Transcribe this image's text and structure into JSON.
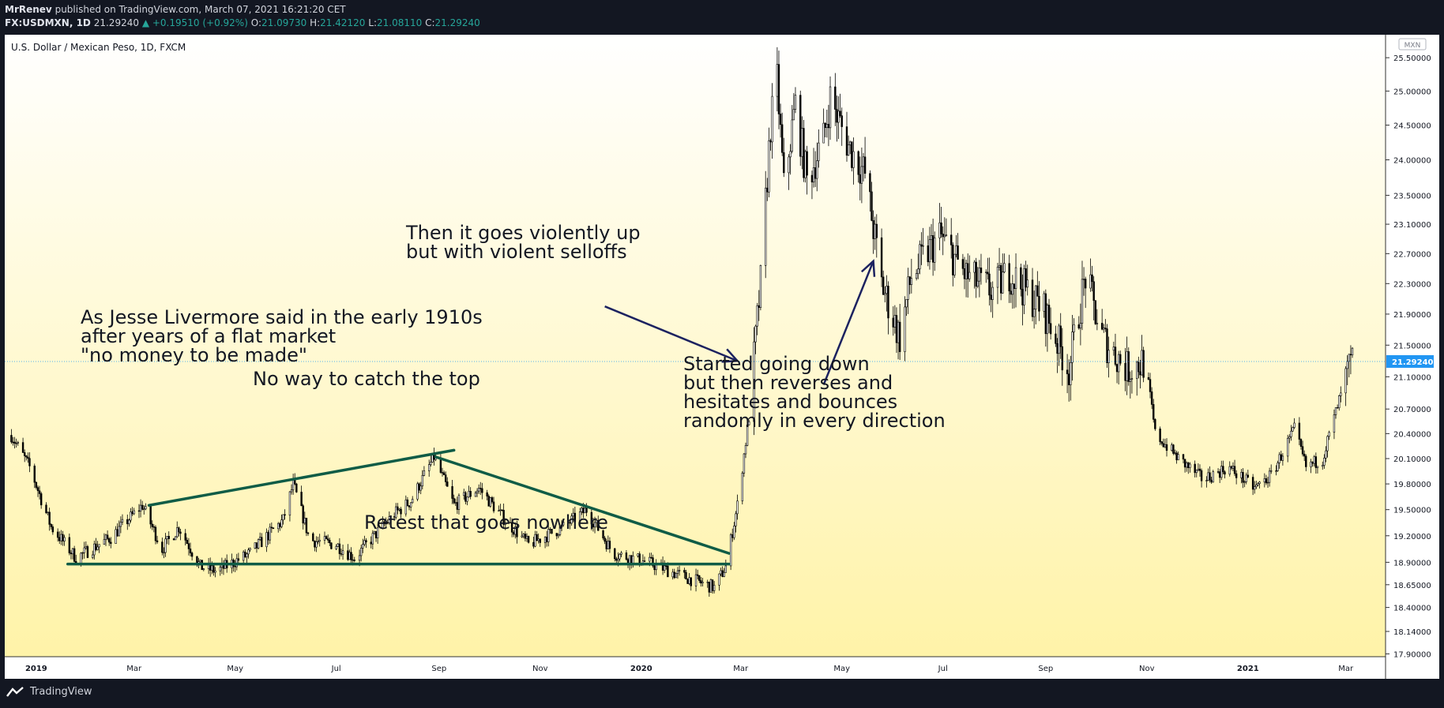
{
  "header": {
    "author": "MrRenev",
    "published_text": "published on TradingView.com, March 07, 2021 16:21:20 CET",
    "symbol": "FX:USDMXN, 1D",
    "last": "21.29240",
    "change": "▲ +0.19510 (+0.92%)",
    "open_label": "O:",
    "open": "21.09730",
    "high_label": "H:",
    "high": "21.42120",
    "low_label": "L:",
    "low": "21.08110",
    "close_label": "C:",
    "close": "21.29240"
  },
  "chart_data": {
    "type": "candlestick",
    "title": "U.S. Dollar / Mexican Peso, 1D, FXCM",
    "currency_badge": "MXN",
    "x_ticks": [
      "2019",
      "Mar",
      "May",
      "Jul",
      "Sep",
      "Nov",
      "2020",
      "Mar",
      "May",
      "Jul",
      "Sep",
      "Nov",
      "2021",
      "Mar"
    ],
    "x_tick_dates": [
      "2019-01-01",
      "2019-03-01",
      "2019-05-01",
      "2019-07-01",
      "2019-09-01",
      "2019-11-01",
      "2020-01-01",
      "2020-03-01",
      "2020-05-01",
      "2020-07-01",
      "2020-09-01",
      "2020-11-01",
      "2021-01-01",
      "2021-03-01"
    ],
    "x_range": [
      "2018-12-13",
      "2021-03-25"
    ],
    "y_ticks": [
      "25.50000",
      "25.00000",
      "24.50000",
      "24.00000",
      "23.50000",
      "23.10000",
      "22.70000",
      "22.30000",
      "21.90000",
      "21.50000",
      "21.10000",
      "20.70000",
      "20.40000",
      "20.10000",
      "19.80000",
      "19.50000",
      "19.20000",
      "18.90000",
      "18.65000",
      "18.40000",
      "18.14000",
      "17.90000"
    ],
    "y_scale": "log",
    "y_range": [
      17.87,
      25.85
    ],
    "last_price": "21.29240",
    "series_anchors": [
      {
        "date": "2018-12-17",
        "close": 20.38
      },
      {
        "date": "2018-12-28",
        "close": 20.0
      },
      {
        "date": "2019-01-10",
        "close": 19.3
      },
      {
        "date": "2019-01-25",
        "close": 18.95
      },
      {
        "date": "2019-02-15",
        "close": 19.18
      },
      {
        "date": "2019-03-06",
        "close": 19.55
      },
      {
        "date": "2019-03-18",
        "close": 19.05
      },
      {
        "date": "2019-03-28",
        "close": 19.3
      },
      {
        "date": "2019-04-10",
        "close": 18.85
      },
      {
        "date": "2019-04-20",
        "close": 18.8
      },
      {
        "date": "2019-05-10",
        "close": 19.0
      },
      {
        "date": "2019-05-30",
        "close": 19.38
      },
      {
        "date": "2019-06-05",
        "close": 19.8
      },
      {
        "date": "2019-06-15",
        "close": 19.15
      },
      {
        "date": "2019-07-01",
        "close": 19.1
      },
      {
        "date": "2019-07-12",
        "close": 18.95
      },
      {
        "date": "2019-08-05",
        "close": 19.45
      },
      {
        "date": "2019-08-15",
        "close": 19.6
      },
      {
        "date": "2019-08-29",
        "close": 20.12
      },
      {
        "date": "2019-09-10",
        "close": 19.55
      },
      {
        "date": "2019-09-25",
        "close": 19.75
      },
      {
        "date": "2019-10-10",
        "close": 19.4
      },
      {
        "date": "2019-10-25",
        "close": 19.1
      },
      {
        "date": "2019-11-15",
        "close": 19.3
      },
      {
        "date": "2019-11-29",
        "close": 19.5
      },
      {
        "date": "2019-12-15",
        "close": 19.0
      },
      {
        "date": "2020-01-05",
        "close": 18.9
      },
      {
        "date": "2020-01-25",
        "close": 18.75
      },
      {
        "date": "2020-02-14",
        "close": 18.62
      },
      {
        "date": "2020-02-21",
        "close": 18.85
      },
      {
        "date": "2020-02-28",
        "close": 19.55
      },
      {
        "date": "2020-03-06",
        "close": 20.6
      },
      {
        "date": "2020-03-13",
        "close": 22.3
      },
      {
        "date": "2020-03-19",
        "close": 24.5
      },
      {
        "date": "2020-03-23",
        "close": 25.15
      },
      {
        "date": "2020-03-27",
        "close": 23.6
      },
      {
        "date": "2020-04-03",
        "close": 24.8
      },
      {
        "date": "2020-04-10",
        "close": 23.7
      },
      {
        "date": "2020-04-20",
        "close": 24.3
      },
      {
        "date": "2020-04-24",
        "close": 24.9
      },
      {
        "date": "2020-05-05",
        "close": 24.2
      },
      {
        "date": "2020-05-15",
        "close": 23.8
      },
      {
        "date": "2020-05-25",
        "close": 22.3
      },
      {
        "date": "2020-06-05",
        "close": 21.6
      },
      {
        "date": "2020-06-12",
        "close": 22.4
      },
      {
        "date": "2020-06-29",
        "close": 22.95
      },
      {
        "date": "2020-07-15",
        "close": 22.4
      },
      {
        "date": "2020-07-31",
        "close": 22.2
      },
      {
        "date": "2020-08-10",
        "close": 22.45
      },
      {
        "date": "2020-08-31",
        "close": 21.95
      },
      {
        "date": "2020-09-15",
        "close": 21.2
      },
      {
        "date": "2020-09-25",
        "close": 22.4
      },
      {
        "date": "2020-10-05",
        "close": 21.6
      },
      {
        "date": "2020-10-20",
        "close": 21.2
      },
      {
        "date": "2020-10-31",
        "close": 21.3
      },
      {
        "date": "2020-11-06",
        "close": 20.4
      },
      {
        "date": "2020-11-20",
        "close": 20.1
      },
      {
        "date": "2020-12-05",
        "close": 19.85
      },
      {
        "date": "2020-12-20",
        "close": 20.0
      },
      {
        "date": "2021-01-05",
        "close": 19.75
      },
      {
        "date": "2021-01-15",
        "close": 19.9
      },
      {
        "date": "2021-01-29",
        "close": 20.45
      },
      {
        "date": "2021-02-05",
        "close": 20.0
      },
      {
        "date": "2021-02-15",
        "close": 20.1
      },
      {
        "date": "2021-02-25",
        "close": 20.8
      },
      {
        "date": "2021-03-05",
        "close": 21.3
      }
    ],
    "annotations": [
      {
        "text": "As Jesse Livermore said in the early 1910s"
      },
      {
        "text": "after years of a flat market"
      },
      {
        "text": "\"no money to be made\""
      },
      {
        "text": "No way to catch the top"
      },
      {
        "text": "Retest that goes nowhere"
      },
      {
        "text": "Then it goes violently up"
      },
      {
        "text": "but with violent selloffs"
      },
      {
        "text": "Started going down"
      },
      {
        "text": "but then reverses and"
      },
      {
        "text": "hesitates and bounces"
      },
      {
        "text": "randomly in every direction"
      }
    ],
    "trendlines": [
      {
        "name": "support",
        "from": {
          "date": "2019-01-20",
          "price": 18.88
        },
        "to": {
          "date": "2020-02-23",
          "price": 18.88
        }
      },
      {
        "name": "upper-trend",
        "from": {
          "date": "2019-03-10",
          "price": 19.55
        },
        "to": {
          "date": "2019-09-10",
          "price": 20.2
        }
      },
      {
        "name": "down-trend",
        "from": {
          "date": "2019-08-30",
          "price": 20.12
        },
        "to": {
          "date": "2020-02-23",
          "price": 19.0
        }
      }
    ],
    "arrows": [
      {
        "name": "arrow-up-move",
        "from": {
          "date": "2019-12-10",
          "price": 22.0
        },
        "to": {
          "date": "2020-02-28",
          "price": 21.3
        }
      },
      {
        "name": "arrow-down-reversal",
        "from": {
          "date": "2020-04-20",
          "price": 21.0
        },
        "to": {
          "date": "2020-05-20",
          "price": 22.6
        }
      }
    ],
    "colors": {
      "up": "#000000",
      "down": "#000000",
      "trendline": "#0f5c46",
      "arrow": "#1c2260",
      "gradient_top": "#ffffff",
      "gradient_bottom": "#fff3a8",
      "price_tag": "#2196f3"
    }
  },
  "footer": {
    "brand": "TradingView"
  }
}
